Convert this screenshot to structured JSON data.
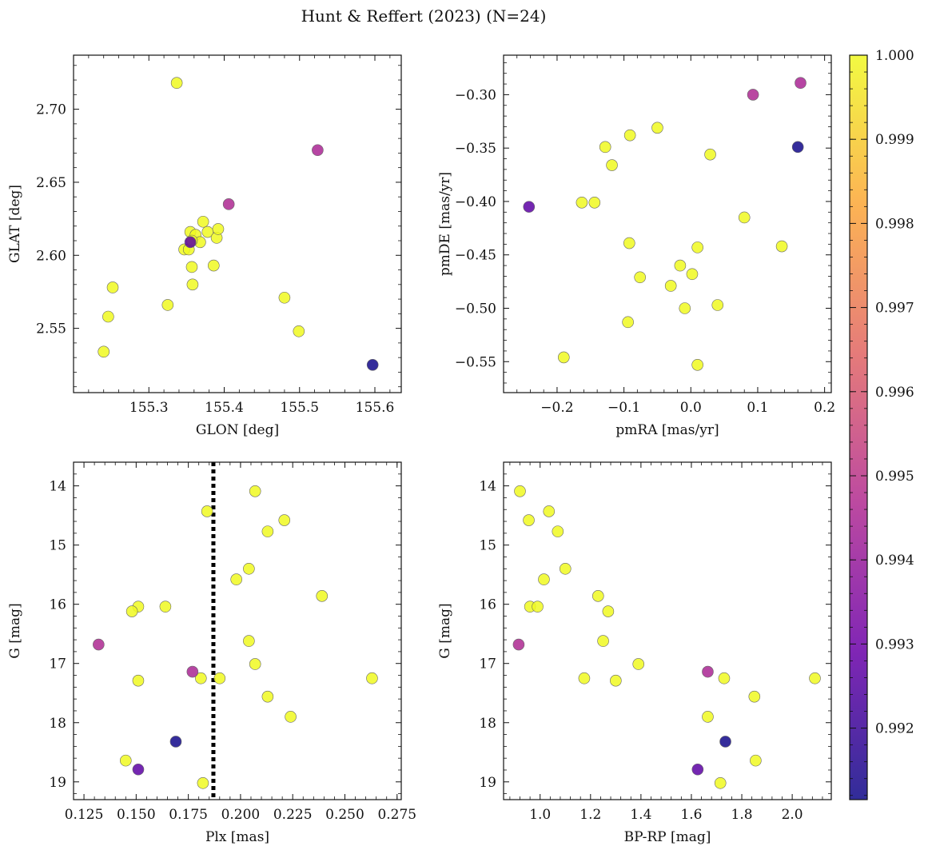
{
  "colors": {
    "cmap": [
      "#0d0887",
      "#6a00a8",
      "#b12a90",
      "#e16462",
      "#fca636",
      "#f0f921"
    ],
    "edge": "#666666",
    "ref_line": "#000000"
  },
  "figure": {
    "title": "Hunt & Reffert (2023) (N=24)"
  },
  "chart_data": [
    {
      "id": "sky",
      "type": "scatter",
      "xlabel": "GLON [deg]",
      "ylabel": "GLAT [deg]",
      "xlim": [
        155.2,
        155.635
      ],
      "ylim": [
        2.506,
        2.737
      ],
      "xticks": [
        155.3,
        155.4,
        155.5,
        155.6
      ],
      "xticklabels": [
        "155.3",
        "155.4",
        "155.5",
        "155.6"
      ],
      "yticks": [
        2.55,
        2.6,
        2.65,
        2.7
      ],
      "yticklabels": [
        "2.55",
        "2.60",
        "2.65",
        "2.70"
      ],
      "x": [
        155.337,
        155.252,
        155.246,
        155.24,
        155.325,
        155.347,
        155.353,
        155.355,
        155.357,
        155.358,
        155.362,
        155.368,
        155.372,
        155.378,
        155.39,
        155.392,
        155.357,
        155.48,
        155.499,
        155.386,
        155.406,
        155.524,
        155.597,
        155.355
      ],
      "y": [
        2.718,
        2.578,
        2.558,
        2.534,
        2.566,
        2.604,
        2.604,
        2.616,
        2.592,
        2.58,
        2.614,
        2.609,
        2.623,
        2.616,
        2.612,
        2.618,
        2.61,
        2.571,
        2.548,
        2.593,
        2.635,
        2.672,
        2.525,
        2.609
      ]
    },
    {
      "id": "pm",
      "type": "scatter",
      "xlabel": "pmRA [mas/yr]",
      "ylabel": "pmDE [mas/yr]",
      "xlim": [
        -0.28,
        0.21
      ],
      "ylim": [
        -0.579,
        -0.263
      ],
      "xticks": [
        -0.2,
        -0.1,
        0.0,
        0.1,
        0.2
      ],
      "xticklabels": [
        "−0.2",
        "−0.1",
        "0.0",
        "0.1",
        "0.2"
      ],
      "yticks": [
        -0.55,
        -0.5,
        -0.45,
        -0.4,
        -0.35,
        -0.3
      ],
      "yticklabels": [
        "−0.55",
        "−0.50",
        "−0.45",
        "−0.40",
        "−0.35",
        "−0.30"
      ],
      "x": [
        -0.128,
        -0.091,
        -0.05,
        0.029,
        -0.118,
        -0.163,
        -0.144,
        0.08,
        0.136,
        -0.092,
        0.01,
        -0.016,
        0.002,
        -0.076,
        -0.03,
        -0.009,
        0.04,
        -0.094,
        0.01,
        -0.19,
        0.093,
        0.164,
        0.16,
        -0.242
      ],
      "y": [
        -0.349,
        -0.338,
        -0.331,
        -0.356,
        -0.366,
        -0.401,
        -0.401,
        -0.415,
        -0.442,
        -0.439,
        -0.443,
        -0.46,
        -0.468,
        -0.471,
        -0.479,
        -0.5,
        -0.497,
        -0.513,
        -0.553,
        -0.546,
        -0.3,
        -0.289,
        -0.349,
        -0.405
      ]
    },
    {
      "id": "plx",
      "type": "scatter",
      "xlabel": "Plx [mas]",
      "ylabel": "G [mag]",
      "xlim": [
        0.12,
        0.277
      ],
      "ylim": [
        19.3,
        13.6
      ],
      "ref_x": 0.187,
      "xticks": [
        0.125,
        0.15,
        0.175,
        0.2,
        0.225,
        0.25,
        0.275
      ],
      "xticklabels": [
        "0.125",
        "0.150",
        "0.175",
        "0.200",
        "0.225",
        "0.250",
        "0.275"
      ],
      "yticks": [
        14,
        15,
        16,
        17,
        18,
        19
      ],
      "yticklabels": [
        "14",
        "15",
        "16",
        "17",
        "18",
        "19"
      ],
      "x": [
        0.207,
        0.184,
        0.221,
        0.213,
        0.204,
        0.198,
        0.239,
        0.151,
        0.148,
        0.164,
        0.204,
        0.207,
        0.181,
        0.19,
        0.151,
        0.263,
        0.213,
        0.224,
        0.145,
        0.182,
        0.132,
        0.177,
        0.169,
        0.151
      ],
      "y": [
        14.09,
        14.43,
        14.58,
        14.77,
        15.4,
        15.58,
        15.86,
        16.04,
        16.12,
        16.04,
        16.62,
        17.01,
        17.25,
        17.25,
        17.29,
        17.25,
        17.56,
        17.9,
        18.64,
        19.02,
        16.68,
        17.14,
        18.32,
        18.79
      ]
    },
    {
      "id": "cmd",
      "type": "scatter",
      "xlabel": "BP-RP [mag]",
      "ylabel": "G [mag]",
      "xlim": [
        0.855,
        2.155
      ],
      "ylim": [
        19.3,
        13.6
      ],
      "xticks": [
        1.0,
        1.2,
        1.4,
        1.6,
        1.8,
        2.0
      ],
      "xticklabels": [
        "1.0",
        "1.2",
        "1.4",
        "1.6",
        "1.8",
        "2.0"
      ],
      "yticks": [
        14,
        15,
        16,
        17,
        18,
        19
      ],
      "yticklabels": [
        "14",
        "15",
        "16",
        "17",
        "18",
        "19"
      ],
      "x": [
        0.92,
        1.035,
        0.955,
        1.07,
        1.1,
        1.015,
        1.23,
        0.96,
        0.99,
        1.27,
        1.25,
        1.39,
        1.175,
        1.73,
        1.3,
        2.09,
        1.85,
        1.665,
        1.855,
        1.715,
        0.915,
        1.665,
        1.735,
        1.625
      ],
      "y": [
        14.09,
        14.43,
        14.58,
        14.77,
        15.4,
        15.58,
        15.86,
        16.04,
        16.04,
        16.12,
        16.62,
        17.01,
        17.25,
        17.25,
        17.29,
        17.25,
        17.56,
        17.9,
        18.64,
        19.02,
        16.68,
        17.14,
        18.32,
        18.79
      ]
    }
  ],
  "membership": [
    1,
    1,
    1,
    1,
    1,
    1,
    1,
    1,
    1,
    1,
    1,
    1,
    1,
    1,
    1,
    1,
    1,
    1,
    1,
    1,
    0.9946,
    0.9945,
    0.99125,
    0.99265
  ],
  "colorbar": {
    "vmin": 0.99115,
    "vmax": 1.0,
    "ticks": [
      0.992,
      0.993,
      0.994,
      0.995,
      0.996,
      0.997,
      0.998,
      0.999,
      1.0
    ],
    "ticklabels": [
      "0.992",
      "0.993",
      "0.994",
      "0.995",
      "0.996",
      "0.997",
      "0.998",
      "0.999",
      "1.000"
    ]
  }
}
